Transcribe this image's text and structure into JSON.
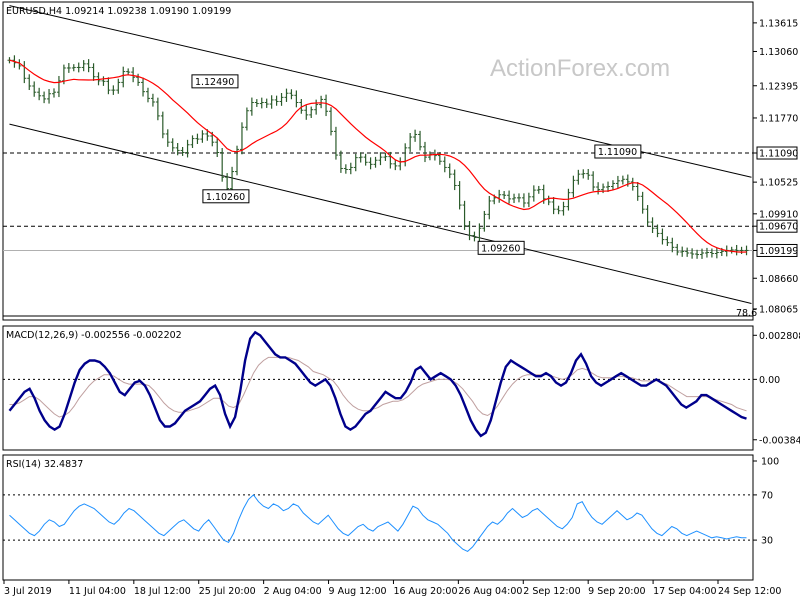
{
  "chart_data": [
    {
      "type": "candlestick",
      "title": "EURUSD,H4  1.09214 1.09238 1.09190 1.09199",
      "watermark": "ActionForex.com",
      "ylim": [
        1.0785,
        1.1402
      ],
      "y_ticks": [
        "1.13615",
        "1.13060",
        "1.12395",
        "1.11770",
        "1.11090",
        "1.10525",
        "1.09910",
        "1.09670",
        "1.09199",
        "1.08660",
        "1.08065"
      ],
      "y_tick_values": [
        1.13615,
        1.1306,
        1.12395,
        1.1177,
        1.1109,
        1.10525,
        1.0991,
        1.0967,
        1.09199,
        1.0866,
        1.08065
      ],
      "x_tick_labels": [
        "3 Jul 2019",
        "11 Jul 04:00",
        "18 Jul 12:00",
        "25 Jul 20:00",
        "2 Aug 04:00",
        "9 Aug 12:00",
        "16 Aug 20:00",
        "26 Aug 04:00",
        "2 Sep 12:00",
        "9 Sep 20:00",
        "17 Sep 04:00",
        "24 Sep 12:00"
      ],
      "highlighted_prices": [
        {
          "label": "1.11090",
          "value": 1.1109
        },
        {
          "label": "1.09670",
          "value": 1.0967
        },
        {
          "label": "1.09199",
          "value": 1.09199
        }
      ],
      "horizontal_levels": [
        1.1109,
        1.0967,
        1.09199
      ],
      "level_annotation": "78.6",
      "price_labels": [
        {
          "text": "1.12490",
          "value": 1.1249,
          "bar": 47
        },
        {
          "text": "1.10260",
          "value": 1.1026,
          "bar": 48
        },
        {
          "text": "1.09260",
          "value": 1.0926,
          "bar": 100
        },
        {
          "text": "1.11090",
          "value": 1.1109,
          "bar": 124
        }
      ],
      "moving_average": "red",
      "channel": {
        "upper": [
          {
            "bar": 0,
            "value": 1.1395
          },
          {
            "bar": 150,
            "value": 1.1062
          }
        ],
        "lower": [
          {
            "bar": 0,
            "value": 1.1165
          },
          {
            "bar": 150,
            "value": 1.0817
          }
        ]
      },
      "closes": [
        1.1289,
        1.1284,
        1.1278,
        1.1254,
        1.1239,
        1.1227,
        1.122,
        1.1214,
        1.1224,
        1.1227,
        1.1249,
        1.1274,
        1.1274,
        1.1275,
        1.1275,
        1.1282,
        1.1275,
        1.1257,
        1.1249,
        1.1248,
        1.1231,
        1.1231,
        1.1246,
        1.1267,
        1.1266,
        1.1256,
        1.1246,
        1.1228,
        1.1215,
        1.1208,
        1.1181,
        1.1146,
        1.113,
        1.1119,
        1.1114,
        1.111,
        1.1125,
        1.1137,
        1.1136,
        1.1146,
        1.1142,
        1.113,
        1.111,
        1.1062,
        1.104,
        1.1073,
        1.1116,
        1.1159,
        1.1191,
        1.1207,
        1.1205,
        1.1207,
        1.1204,
        1.1212,
        1.1209,
        1.1217,
        1.1225,
        1.1221,
        1.1207,
        1.1192,
        1.1183,
        1.1193,
        1.1203,
        1.1213,
        1.119,
        1.1151,
        1.1105,
        1.1079,
        1.1077,
        1.1081,
        1.11,
        1.1101,
        1.1091,
        1.1087,
        1.1095,
        1.1101,
        1.1102,
        1.1088,
        1.1084,
        1.1092,
        1.1119,
        1.114,
        1.1145,
        1.1121,
        1.1101,
        1.1106,
        1.1104,
        1.1093,
        1.1081,
        1.1068,
        1.1046,
        1.1008,
        1.0968,
        1.0949,
        1.0945,
        1.0963,
        1.099,
        1.1016,
        1.1022,
        1.1028,
        1.1027,
        1.102,
        1.1022,
        1.1022,
        1.1012,
        1.1024,
        1.1037,
        1.1038,
        1.102,
        1.1014,
        1.1,
        1.0997,
        1.1005,
        1.1032,
        1.1056,
        1.1068,
        1.1069,
        1.1066,
        1.1043,
        1.1038,
        1.1043,
        1.1044,
        1.105,
        1.1055,
        1.1058,
        1.1053,
        1.1044,
        1.1025,
        1.1,
        1.0975,
        1.0963,
        1.0953,
        1.0941,
        1.0935,
        1.0926,
        1.0917,
        1.0918,
        1.0915,
        1.0913,
        1.0912,
        1.0915,
        1.0916,
        1.0914,
        1.0916,
        1.0918,
        1.092,
        1.0921,
        1.092,
        1.092,
        1.092
      ],
      "series": [
        {
          "name": "EURUSD H4",
          "values": "closes"
        }
      ]
    },
    {
      "type": "line",
      "title": "MACD(12,26,9) -0.002556 -0.002202",
      "ylim": [
        -0.0045,
        0.0034
      ],
      "y_ticks": [
        "0.002808",
        "0.00",
        "-0.003848"
      ],
      "y_tick_values": [
        0.002808,
        0.0,
        -0.003848
      ],
      "zero_line": 0.0,
      "series": [
        {
          "name": "MACD",
          "color": "#00008b",
          "values": [
            -0.002,
            -0.0016,
            -0.0012,
            -0.0008,
            -0.0006,
            -0.0012,
            -0.002,
            -0.0026,
            -0.003,
            -0.0032,
            -0.003,
            -0.0022,
            -0.0012,
            -0.0002,
            0.0006,
            0.001,
            0.0012,
            0.0012,
            0.0011,
            0.0008,
            0.0004,
            -0.0002,
            -0.0008,
            -0.001,
            -0.0006,
            -0.0002,
            -0.0001,
            -0.0004,
            -0.001,
            -0.0018,
            -0.0026,
            -0.003,
            -0.003,
            -0.0028,
            -0.0024,
            -0.002,
            -0.0018,
            -0.0016,
            -0.0014,
            -0.001,
            -0.0006,
            -0.0004,
            -0.001,
            -0.0022,
            -0.003,
            -0.0024,
            -0.0008,
            0.0012,
            0.0026,
            0.003,
            0.0028,
            0.0024,
            0.002,
            0.0016,
            0.0014,
            0.0014,
            0.0012,
            0.001,
            0.0006,
            0.0002,
            -0.0002,
            -0.0004,
            -0.0002,
            0.0,
            -0.0004,
            -0.0012,
            -0.0022,
            -0.003,
            -0.0032,
            -0.003,
            -0.0026,
            -0.0022,
            -0.002,
            -0.0016,
            -0.0012,
            -0.0008,
            -0.001,
            -0.0012,
            -0.0012,
            -0.0008,
            -0.0002,
            0.0006,
            0.0008,
            0.0004,
            0.0,
            0.0002,
            0.0004,
            0.0002,
            0.0,
            -0.0004,
            -0.001,
            -0.0018,
            -0.0026,
            -0.0032,
            -0.0036,
            -0.0034,
            -0.0026,
            -0.0014,
            -0.0002,
            0.0008,
            0.0012,
            0.001,
            0.0008,
            0.0006,
            0.0004,
            0.0002,
            0.0002,
            0.0004,
            0.0002,
            -0.0002,
            -0.0004,
            -0.0002,
            0.0004,
            0.0012,
            0.0016,
            0.001,
            0.0002,
            -0.0002,
            -0.0004,
            -0.0002,
            0.0,
            0.0002,
            0.0004,
            0.0002,
            0.0,
            -0.0002,
            -0.0004,
            -0.0004,
            -0.0002,
            0.0,
            -0.0002,
            -0.0004,
            -0.0008,
            -0.0012,
            -0.0016,
            -0.0018,
            -0.0016,
            -0.0014,
            -0.001,
            -0.001,
            -0.0012,
            -0.0014,
            -0.0016,
            -0.0018,
            -0.002,
            -0.0022,
            -0.0024,
            -0.0025
          ]
        },
        {
          "name": "Signal",
          "color": "#c0a0a0",
          "values": [
            -0.0016,
            -0.0016,
            -0.0015,
            -0.0013,
            -0.0011,
            -0.0011,
            -0.0013,
            -0.0016,
            -0.0019,
            -0.0022,
            -0.0024,
            -0.0023,
            -0.0021,
            -0.0017,
            -0.0012,
            -0.0008,
            -0.0004,
            -0.0001,
            0.0001,
            0.0003,
            0.0003,
            0.0002,
            0.0,
            -0.0002,
            -0.0003,
            -0.0003,
            -0.0003,
            -0.0003,
            -0.0004,
            -0.0007,
            -0.0011,
            -0.0015,
            -0.0018,
            -0.002,
            -0.0021,
            -0.0021,
            -0.002,
            -0.0019,
            -0.0018,
            -0.0016,
            -0.0014,
            -0.0012,
            -0.0012,
            -0.0014,
            -0.0017,
            -0.0018,
            -0.0016,
            -0.001,
            -0.0003,
            0.0004,
            0.0009,
            0.0012,
            0.0014,
            0.0014,
            0.0014,
            0.0014,
            0.0014,
            0.0013,
            0.0012,
            0.001,
            0.0008,
            0.0005,
            0.0004,
            0.0003,
            0.0001,
            -0.0001,
            -0.0005,
            -0.001,
            -0.0014,
            -0.0017,
            -0.0019,
            -0.002,
            -0.002,
            -0.0019,
            -0.0018,
            -0.0016,
            -0.0015,
            -0.0014,
            -0.0014,
            -0.0013,
            -0.0011,
            -0.0008,
            -0.0005,
            -0.0003,
            -0.0002,
            -0.0001,
            0.0,
            0.0,
            0.0,
            -0.0001,
            -0.0003,
            -0.0006,
            -0.001,
            -0.0014,
            -0.0019,
            -0.0022,
            -0.0023,
            -0.0021,
            -0.0017,
            -0.0012,
            -0.0007,
            -0.0003,
            0.0,
            0.0002,
            0.0003,
            0.0003,
            0.0003,
            0.0003,
            0.0003,
            0.0002,
            0.0001,
            0.0,
            0.0001,
            0.0003,
            0.0006,
            0.0007,
            0.0006,
            0.0004,
            0.0002,
            0.0001,
            0.0001,
            0.0001,
            0.0002,
            0.0002,
            0.0001,
            0.0001,
            0.0,
            -0.0001,
            -0.0001,
            -0.0001,
            -0.0001,
            -0.0002,
            -0.0003,
            -0.0005,
            -0.0007,
            -0.0009,
            -0.0011,
            -0.0011,
            -0.0011,
            -0.0011,
            -0.0011,
            -0.0012,
            -0.0013,
            -0.0014,
            -0.0015,
            -0.0016,
            -0.0018,
            -0.0019,
            -0.002
          ]
        }
      ]
    },
    {
      "type": "line",
      "title": "RSI(14) 32.4837",
      "ylim": [
        0,
        100
      ],
      "y_ticks": [
        "100",
        "70",
        "30"
      ],
      "y_tick_values": [
        100,
        70,
        30
      ],
      "levels": [
        70,
        30
      ],
      "series": [
        {
          "name": "RSI(14)",
          "color": "#1e90ff",
          "values": [
            52,
            48,
            44,
            40,
            36,
            34,
            38,
            44,
            48,
            46,
            42,
            44,
            50,
            56,
            60,
            62,
            60,
            58,
            54,
            50,
            46,
            44,
            48,
            54,
            58,
            56,
            52,
            48,
            44,
            40,
            36,
            34,
            38,
            42,
            46,
            48,
            44,
            40,
            38,
            44,
            48,
            42,
            36,
            30,
            28,
            36,
            48,
            58,
            66,
            70,
            64,
            60,
            58,
            62,
            60,
            56,
            58,
            62,
            60,
            54,
            50,
            46,
            44,
            48,
            52,
            46,
            40,
            36,
            34,
            38,
            42,
            44,
            40,
            38,
            42,
            44,
            46,
            42,
            38,
            44,
            52,
            60,
            58,
            52,
            48,
            46,
            44,
            40,
            36,
            30,
            26,
            22,
            20,
            24,
            30,
            36,
            42,
            46,
            44,
            48,
            54,
            58,
            54,
            50,
            52,
            56,
            58,
            54,
            50,
            46,
            42,
            40,
            44,
            50,
            62,
            64,
            56,
            50,
            46,
            44,
            48,
            52,
            56,
            52,
            48,
            50,
            54,
            52,
            46,
            40,
            36,
            34,
            38,
            42,
            40,
            36,
            34,
            36,
            38,
            36,
            34,
            32,
            33,
            32,
            31,
            32,
            33,
            32,
            32
          ]
        }
      ]
    }
  ]
}
